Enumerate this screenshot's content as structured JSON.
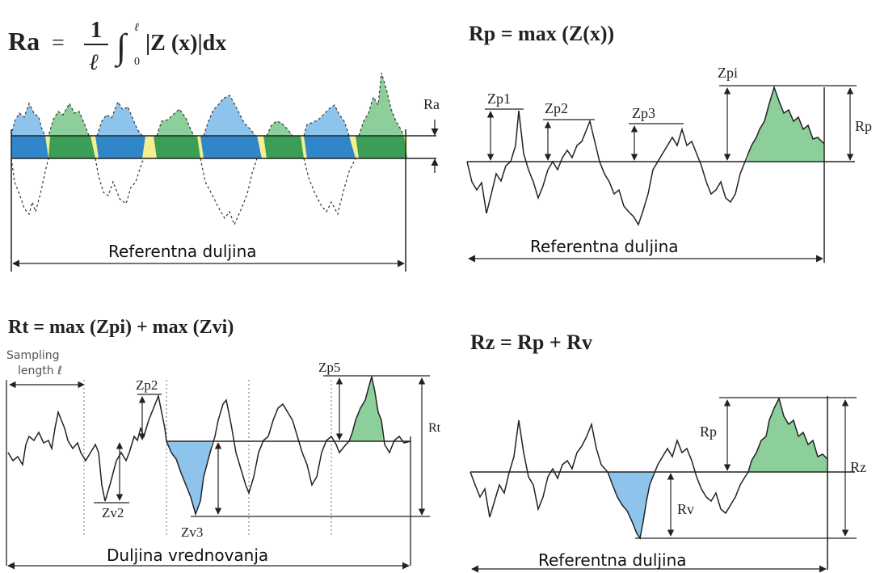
{
  "panels": {
    "ra": {
      "formula_lhs": "Ra",
      "formula_eq": "=",
      "formula_num": "1",
      "formula_den": "ℓ",
      "formula_upper": "ℓ",
      "formula_lower": "0",
      "formula_body": "|Z (x)|dx",
      "label_ra": "Ra",
      "reference_length": "Referentna duljina"
    },
    "rp": {
      "formula": "Rp = max (Z(x))",
      "zp1": "Zp1",
      "zp2": "Zp2",
      "zp3": "Zp3",
      "zpi": "Zpi",
      "label_rp": "Rp",
      "reference_length": "Referentna duljina"
    },
    "rt": {
      "formula": "Rt = max (Zpi) + max (Zvi)",
      "sampling_line1": "Sampling",
      "sampling_line2": "length ℓ",
      "zp2": "Zp2",
      "zp5": "Zp5",
      "zv2": "Zv2",
      "zv3": "Zv3",
      "label_rt": "Rt",
      "evaluation_length": "Duljina vrednovanja"
    },
    "rz": {
      "formula": "Rz = Rp + Rv",
      "label_rp": "Rp",
      "label_rv": "Rv",
      "label_rz": "Rz",
      "reference_length": "Referentna duljina"
    }
  },
  "colors": {
    "peak_green": "#8ccf9a",
    "valley_blue": "#8ec4ec",
    "band_blue": "#2f86c9",
    "band_green": "#3b9e57",
    "band_yellow": "#f4ef93",
    "line": "#222222"
  }
}
